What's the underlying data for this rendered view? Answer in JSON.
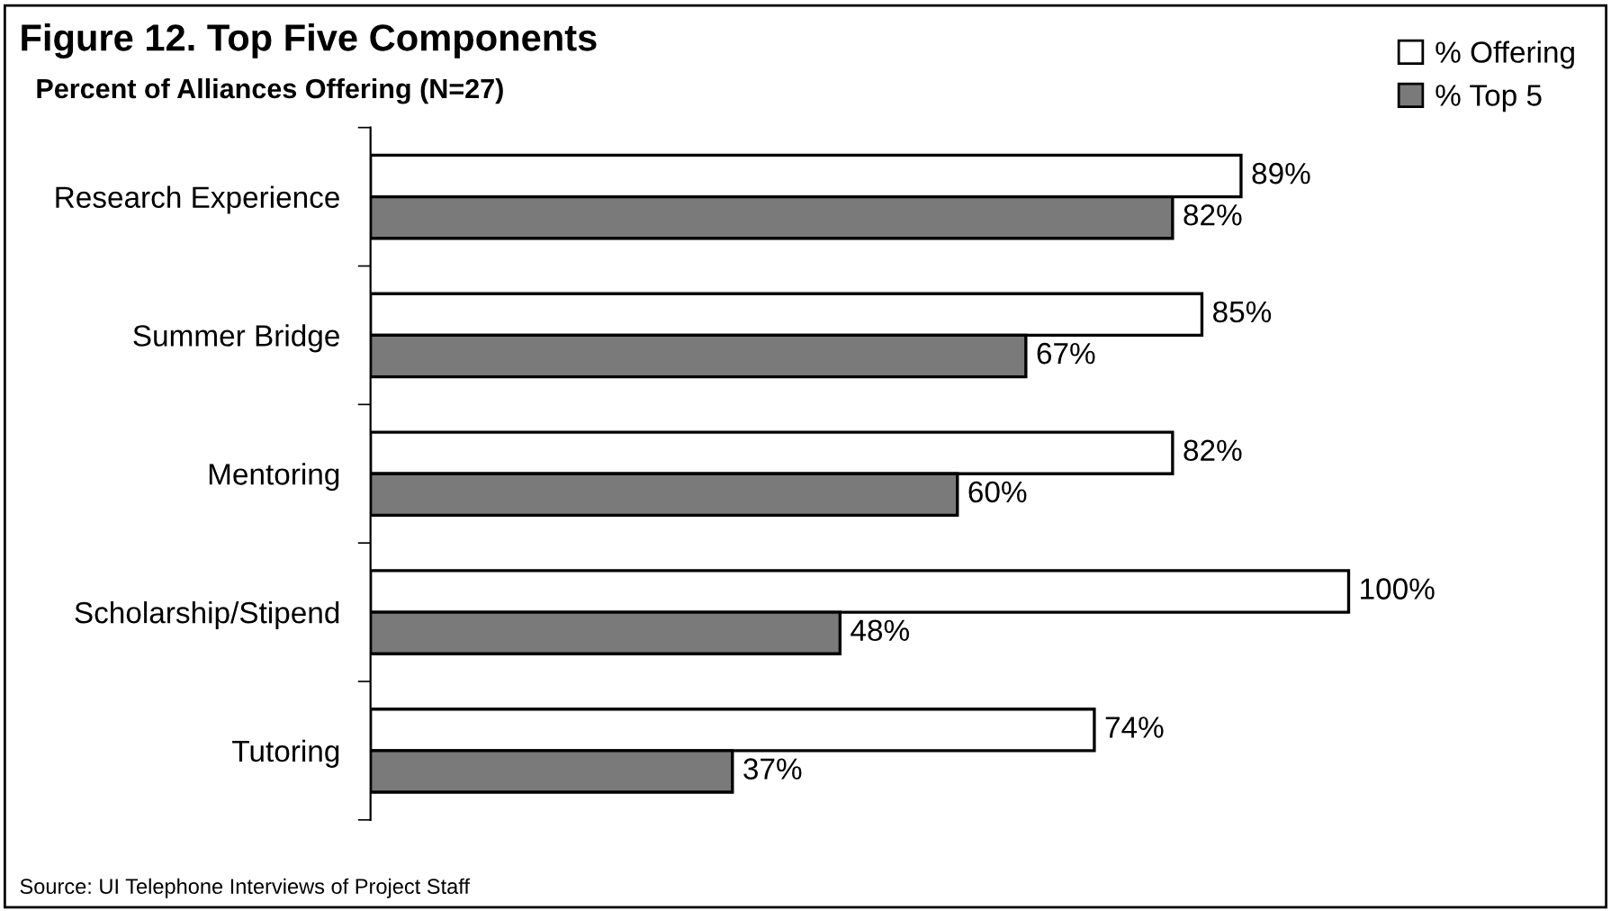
{
  "chart_data": {
    "type": "bar",
    "orientation": "horizontal",
    "title": "Figure 12. Top Five Components",
    "subtitle": "Percent of Alliances Offering (N=27)",
    "categories": [
      "Research Experience",
      "Summer Bridge",
      "Mentoring",
      "Scholarship/Stipend",
      "Tutoring"
    ],
    "series": [
      {
        "name": "% Offering",
        "color": "#ffffff",
        "values": [
          89,
          85,
          82,
          100,
          74
        ],
        "value_labels": [
          "89%",
          "85%",
          "82%",
          "100%",
          "74%"
        ]
      },
      {
        "name": "% Top 5",
        "color": "#7a7a7a",
        "values": [
          82,
          67,
          60,
          48,
          37
        ],
        "value_labels": [
          "82%",
          "67%",
          "60%",
          "48%",
          "37%"
        ]
      }
    ],
    "legend": "top right",
    "grid": false,
    "annotations": [
      "Source: UI Telephone Interviews of Project Staff"
    ]
  }
}
